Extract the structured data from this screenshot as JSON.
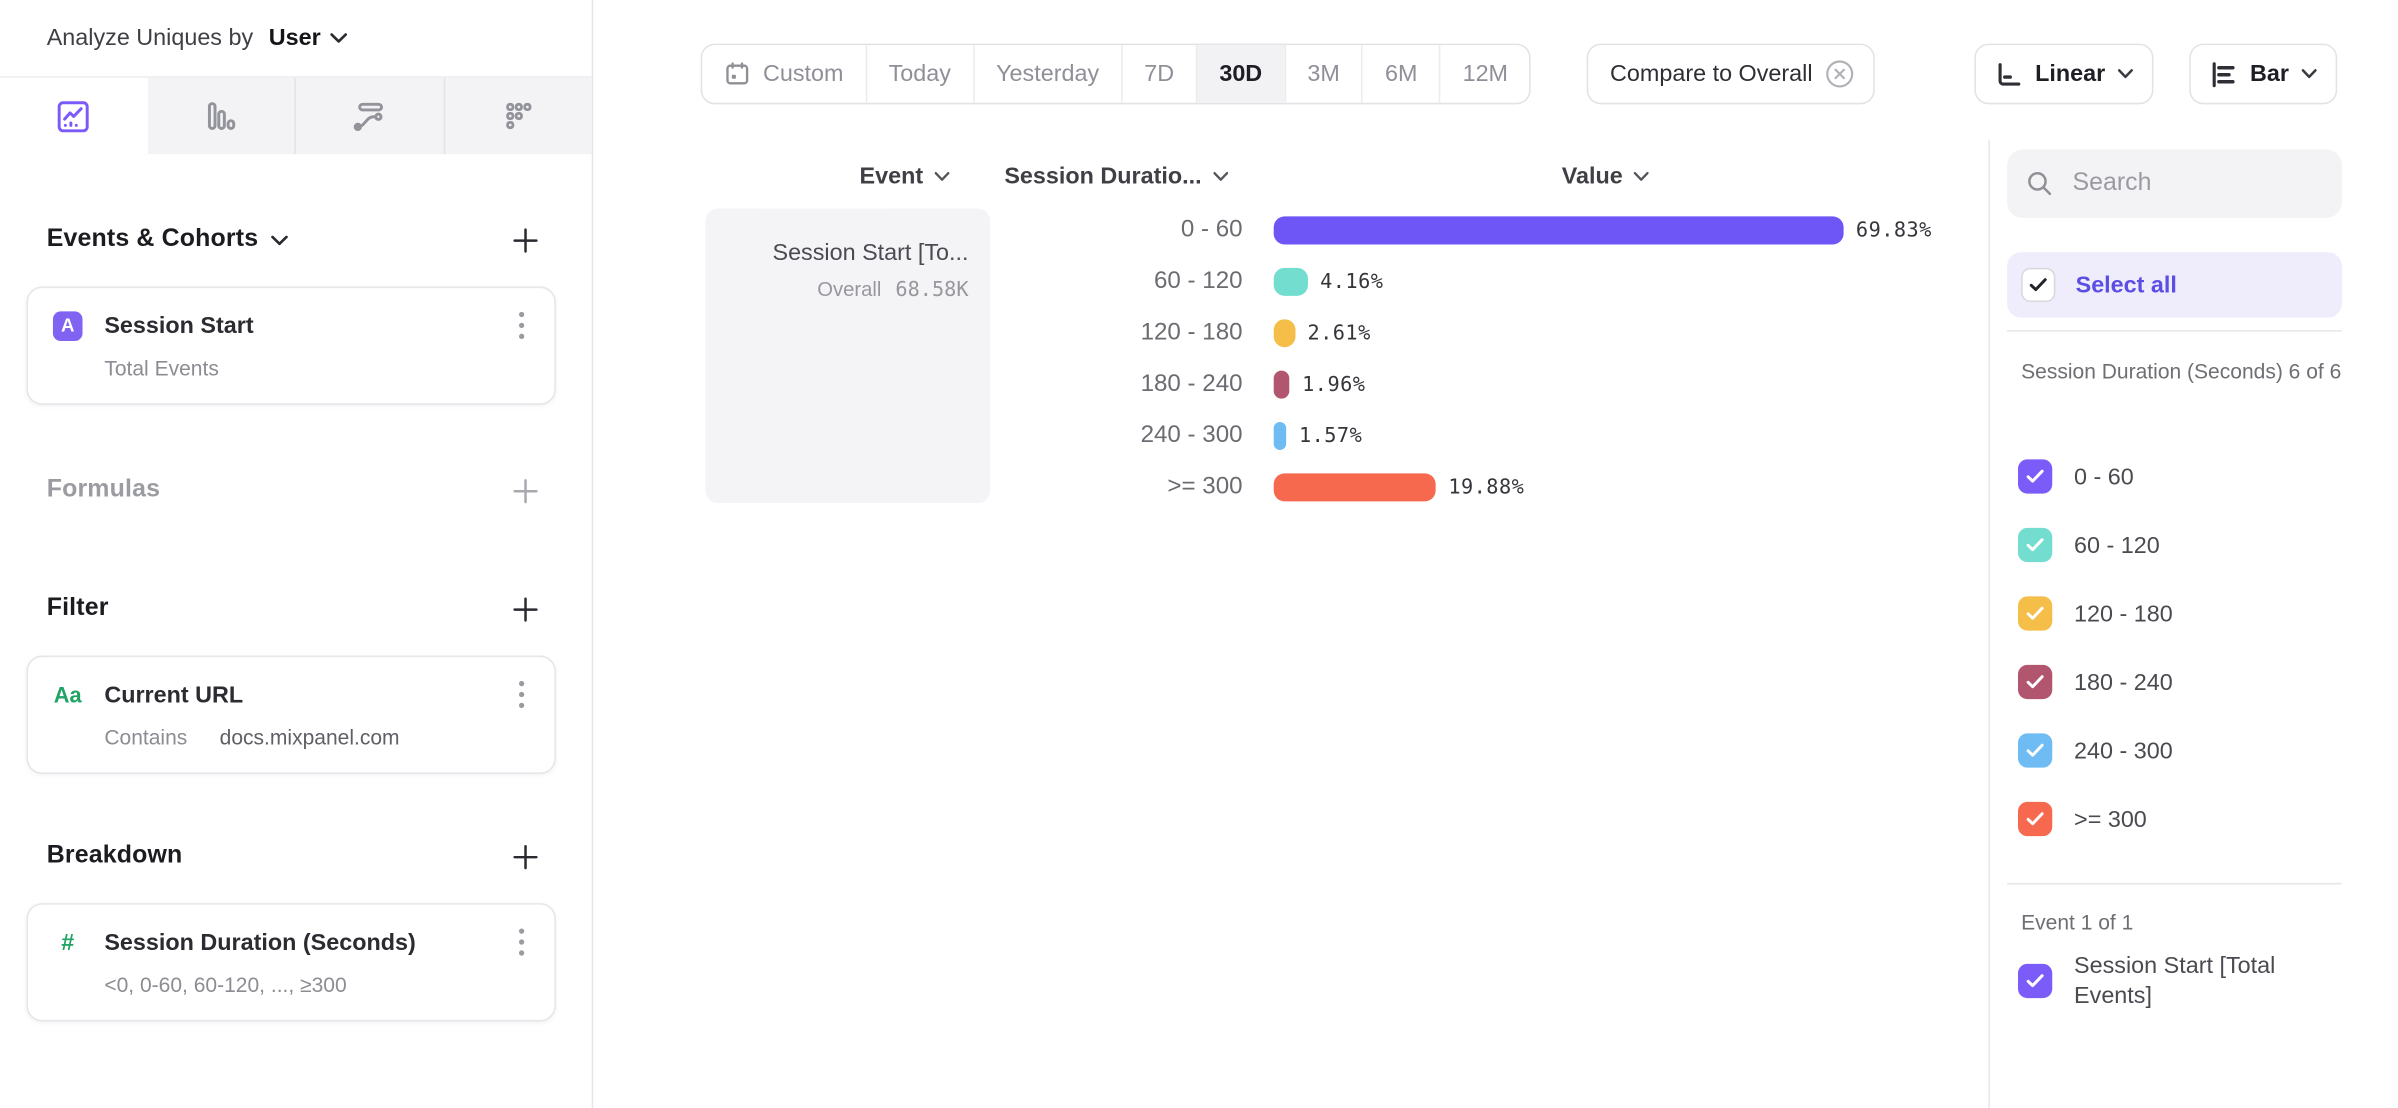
{
  "header": {
    "analyze_label": "Analyze Uniques by",
    "analyze_value": "User"
  },
  "sidebar": {
    "tabs": [
      {
        "name": "insights",
        "active": true
      },
      {
        "name": "bar-chart",
        "active": false
      },
      {
        "name": "flow",
        "active": false
      },
      {
        "name": "metrics",
        "active": false
      }
    ],
    "events_section": {
      "title": "Events & Cohorts",
      "card": {
        "badge": "A",
        "title": "Session Start",
        "subtitle": "Total Events"
      }
    },
    "formulas_section": {
      "title": "Formulas"
    },
    "filter_section": {
      "title": "Filter",
      "card": {
        "icon_label": "Aa",
        "title": "Current URL",
        "operator": "Contains",
        "value": "docs.mixpanel.com"
      }
    },
    "breakdown_section": {
      "title": "Breakdown",
      "card": {
        "icon_label": "#",
        "title": "Session Duration (Seconds)",
        "subtitle": "<0, 0-60, 60-120, ..., ≥300"
      }
    }
  },
  "toolbar": {
    "date_ranges": [
      "Custom",
      "Today",
      "Yesterday",
      "7D",
      "30D",
      "3M",
      "6M",
      "12M"
    ],
    "active_range": "30D",
    "compare_label": "Compare to Overall",
    "scale_label": "Linear",
    "type_label": "Bar"
  },
  "chart_data": {
    "type": "bar",
    "columns": {
      "event": "Event",
      "breakdown": "Session Duratio...",
      "value": "Value"
    },
    "event_label": "Session Start [To...",
    "overall_label": "Overall",
    "overall_value": "68.58K",
    "categories": [
      "0 - 60",
      "60 - 120",
      "120 - 180",
      "180 - 240",
      "240 - 300",
      ">= 300"
    ],
    "values": [
      69.83,
      4.16,
      2.61,
      1.96,
      1.57,
      19.88
    ],
    "value_labels": [
      "69.83%",
      "4.16%",
      "2.61%",
      "1.96%",
      "1.57%",
      "19.88%"
    ],
    "colors": [
      "#6e55f6",
      "#73decf",
      "#f5be49",
      "#b2556f",
      "#6fbcf5",
      "#f7694f"
    ],
    "xlabel": "",
    "ylabel": "Value",
    "xlim": [
      0,
      100
    ],
    "grid": false,
    "legend_position": "right-panel"
  },
  "legend": {
    "search_placeholder": "Search",
    "select_all_label": "Select all",
    "accent_color": "#5b4ee5",
    "groups": [
      {
        "label": "Session Duration (Seconds) 6 of 6",
        "items": [
          {
            "label": "0 - 60",
            "color": "#7c5cf8",
            "checked": true
          },
          {
            "label": "60 - 120",
            "color": "#73decf",
            "checked": true
          },
          {
            "label": "120 - 180",
            "color": "#f5be49",
            "checked": true
          },
          {
            "label": "180 - 240",
            "color": "#b2556f",
            "checked": true
          },
          {
            "label": "240 - 300",
            "color": "#6fbcf5",
            "checked": true
          },
          {
            "label": ">= 300",
            "color": "#f7694f",
            "checked": true
          }
        ]
      },
      {
        "label": "Event 1 of 1",
        "items": [
          {
            "label": "Session Start [Total Events]",
            "color": "#7c5cf8",
            "checked": true
          }
        ]
      }
    ]
  }
}
